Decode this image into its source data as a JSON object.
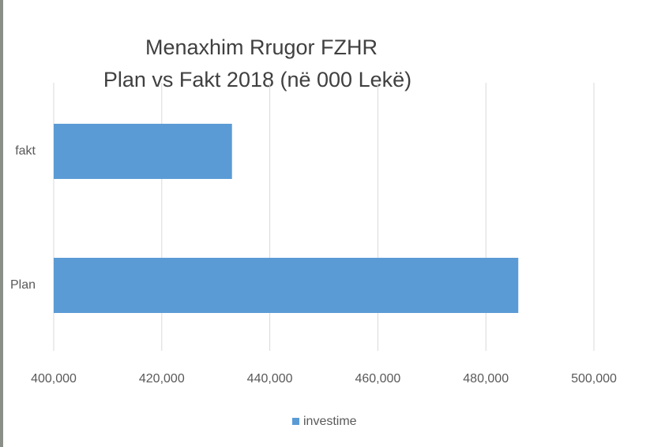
{
  "chart_data": {
    "type": "bar",
    "orientation": "horizontal",
    "title": "Menaxhim Rrugor FZHR",
    "subtitle": "Plan vs Fakt  2018 (në 000 Lekë)",
    "categories": [
      "fakt",
      "Plan"
    ],
    "series": [
      {
        "name": "investime",
        "color": "#5b9bd5",
        "values": [
          433000,
          486000
        ]
      }
    ],
    "xlim": [
      400000,
      500000
    ],
    "xticks": [
      {
        "value": 400000,
        "label": "400,000"
      },
      {
        "value": 420000,
        "label": "420,000"
      },
      {
        "value": 440000,
        "label": "440,000"
      },
      {
        "value": 460000,
        "label": "460,000"
      },
      {
        "value": 480000,
        "label": "480,000"
      },
      {
        "value": 500000,
        "label": "500,000"
      }
    ],
    "grid": true,
    "legend": "bottom"
  }
}
